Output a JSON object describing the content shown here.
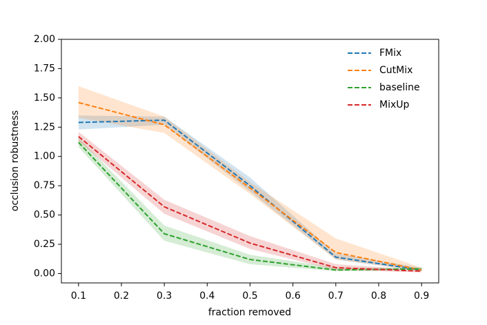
{
  "chart_data": {
    "type": "line",
    "x_label": "fraction removed",
    "y_label": "occlusion robustness",
    "x": [
      0.1,
      0.3,
      0.5,
      0.7,
      0.9
    ],
    "series": [
      {
        "name": "FMix",
        "color": "#1f77b4",
        "values": [
          1.29,
          1.31,
          0.75,
          0.14,
          0.03
        ],
        "lower": [
          1.23,
          1.27,
          0.7,
          0.12,
          0.02
        ],
        "upper": [
          1.35,
          1.34,
          0.82,
          0.17,
          0.05
        ]
      },
      {
        "name": "CutMix",
        "color": "#ff7f0e",
        "values": [
          1.46,
          1.27,
          0.73,
          0.18,
          0.03
        ],
        "lower": [
          1.33,
          1.2,
          0.68,
          0.12,
          0.02
        ],
        "upper": [
          1.6,
          1.34,
          0.78,
          0.3,
          0.05
        ]
      },
      {
        "name": "baseline",
        "color": "#2ca02c",
        "values": [
          1.12,
          0.34,
          0.12,
          0.03,
          0.04
        ],
        "lower": [
          1.08,
          0.28,
          0.08,
          0.02,
          0.03
        ],
        "upper": [
          1.16,
          0.41,
          0.16,
          0.05,
          0.05
        ]
      },
      {
        "name": "MixUp",
        "color": "#d62728",
        "values": [
          1.17,
          0.57,
          0.26,
          0.05,
          0.02
        ],
        "lower": [
          1.13,
          0.51,
          0.21,
          0.03,
          0.01
        ],
        "upper": [
          1.21,
          0.63,
          0.32,
          0.08,
          0.03
        ]
      }
    ],
    "xlim": [
      0.06,
      0.94
    ],
    "ylim": [
      -0.08,
      2.0
    ],
    "xticks": [
      0.1,
      0.2,
      0.3,
      0.4,
      0.5,
      0.6,
      0.7,
      0.8,
      0.9
    ],
    "yticks": [
      {
        "value": 0,
        "label": "0.00"
      },
      {
        "value": 0.25,
        "label": "0.25"
      },
      {
        "value": 0.5,
        "label": "0.50"
      },
      {
        "value": 0.75,
        "label": "0.75"
      },
      {
        "value": 1,
        "label": "1.00"
      },
      {
        "value": 1.25,
        "label": "1.25"
      },
      {
        "value": 1.5,
        "label": "1.50"
      },
      {
        "value": 1.75,
        "label": "1.75"
      },
      {
        "value": 2,
        "label": "2.00"
      }
    ],
    "legend": "upper right",
    "grid": false
  }
}
